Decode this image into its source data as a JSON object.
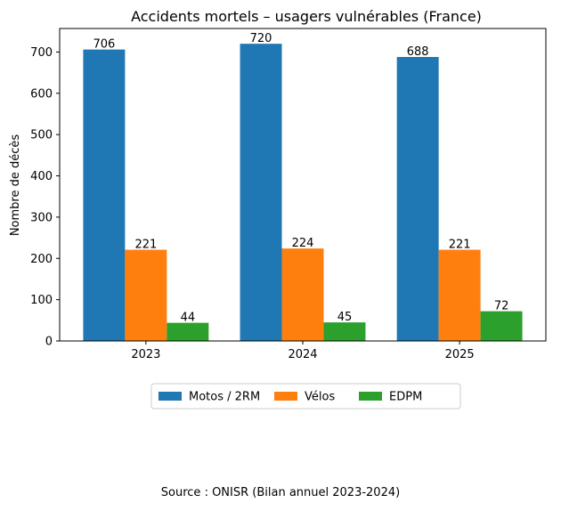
{
  "chart_data": {
    "type": "bar",
    "title": "Accidents mortels – usagers vulnérables (France)",
    "xlabel": "",
    "ylabel": "Nombre de décès",
    "categories": [
      "2023",
      "2024",
      "2025"
    ],
    "series": [
      {
        "name": "Motos / 2RM",
        "values": [
          706,
          720,
          688
        ],
        "color": "#1f77b4"
      },
      {
        "name": "Vélos",
        "values": [
          221,
          224,
          221
        ],
        "color": "#ff7f0e"
      },
      {
        "name": "EDPM",
        "values": [
          44,
          45,
          72
        ],
        "color": "#2ca02c"
      }
    ],
    "ylim": [
      0,
      757
    ],
    "yticks": [
      0,
      100,
      200,
      300,
      400,
      500,
      600,
      700
    ],
    "grid": false,
    "legend_position": "bottom-center",
    "data_labels": true
  },
  "footer": {
    "source": "Source : ONISR (Bilan annuel 2023-2024)"
  }
}
